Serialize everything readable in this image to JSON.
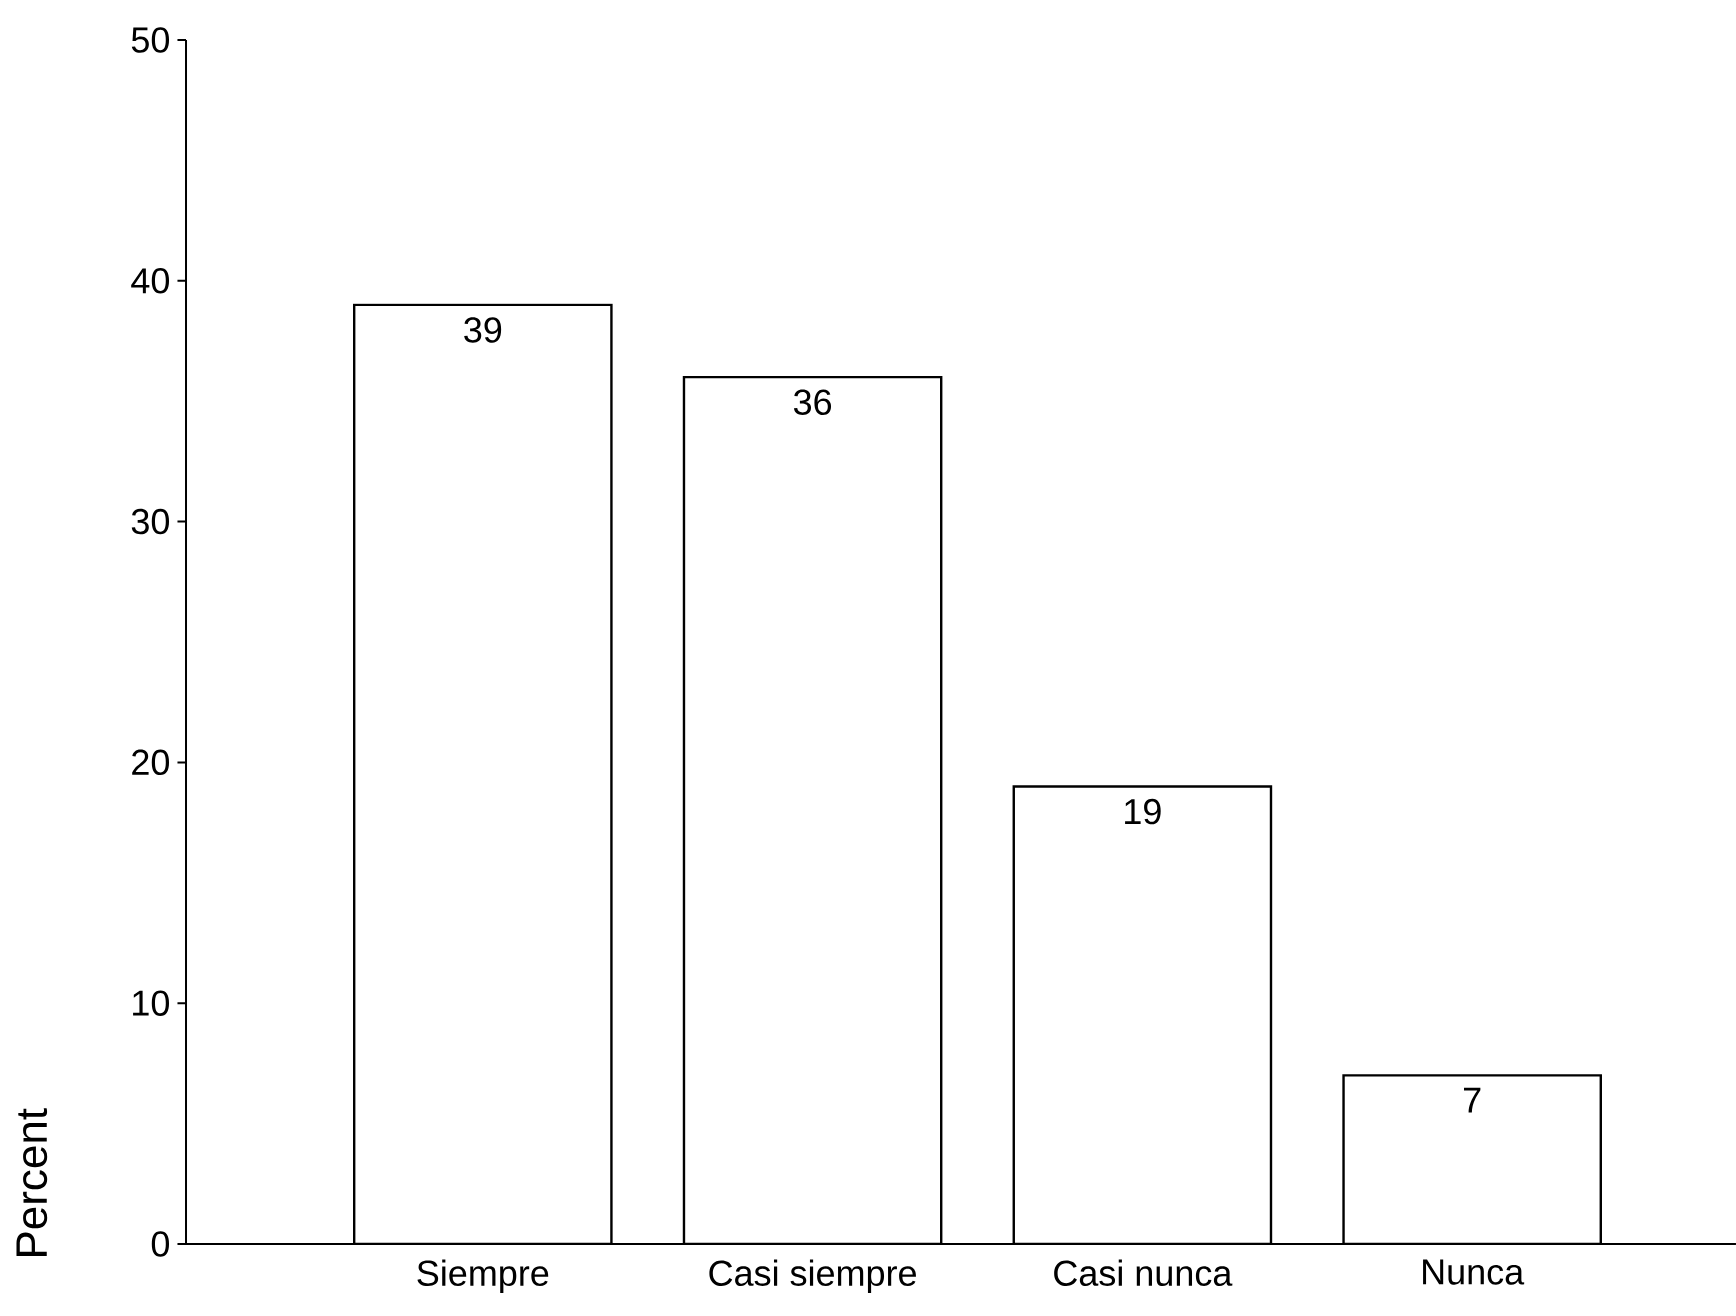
{
  "chart_data": {
    "type": "bar",
    "ylabel": "Percent",
    "categories": [
      "Siempre",
      "Casi siempre",
      "Casi nunca",
      "Nunca"
    ],
    "values": [
      39,
      36,
      19,
      7
    ],
    "color": "#ffffff",
    "ylim": [
      0,
      50
    ],
    "yticks": [
      0,
      10,
      20,
      30,
      40,
      50
    ],
    "data_labels": true
  }
}
